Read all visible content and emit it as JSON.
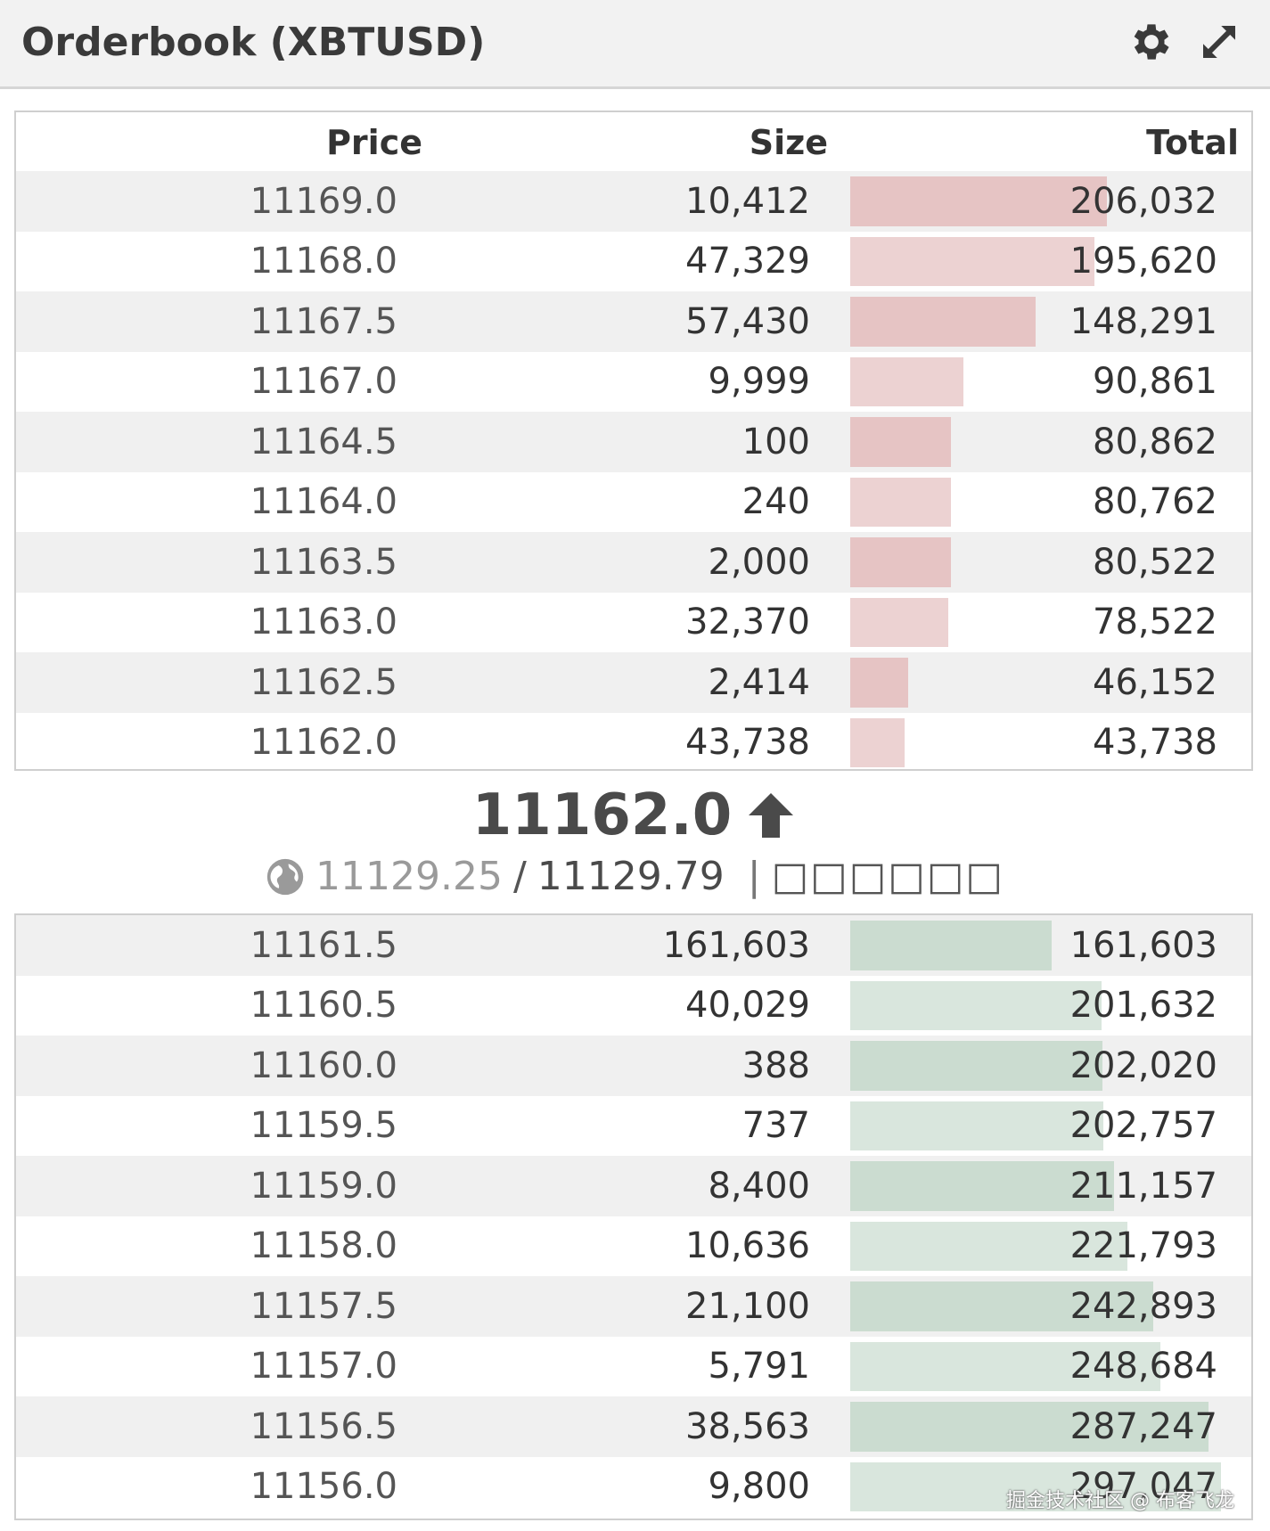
{
  "header": {
    "title": "Orderbook (XBTUSD)",
    "icons": [
      "gear-icon",
      "expand-icon"
    ]
  },
  "columns": {
    "price": "Price",
    "size": "Size",
    "total": "Total"
  },
  "asks": [
    {
      "price": "11169.0",
      "size": "10,412",
      "total": "206,032",
      "depth": 206032
    },
    {
      "price": "11168.0",
      "size": "47,329",
      "total": "195,620",
      "depth": 195620
    },
    {
      "price": "11167.5",
      "size": "57,430",
      "total": "148,291",
      "depth": 148291
    },
    {
      "price": "11167.0",
      "size": "9,999",
      "total": "90,861",
      "depth": 90861
    },
    {
      "price": "11164.5",
      "size": "100",
      "total": "80,862",
      "depth": 80862
    },
    {
      "price": "11164.0",
      "size": "240",
      "total": "80,762",
      "depth": 80762
    },
    {
      "price": "11163.5",
      "size": "2,000",
      "total": "80,522",
      "depth": 80522
    },
    {
      "price": "11163.0",
      "size": "32,370",
      "total": "78,522",
      "depth": 78522
    },
    {
      "price": "11162.5",
      "size": "2,414",
      "total": "46,152",
      "depth": 46152
    },
    {
      "price": "11162.0",
      "size": "43,738",
      "total": "43,738",
      "depth": 43738
    }
  ],
  "mid": {
    "last_price": "11162.0",
    "direction_icon": "arrow-up-icon",
    "index_icon": "globe-icon",
    "index_price": "11129.25",
    "separator": "/",
    "mark_price": "11129.79",
    "divider": "|",
    "label": "□□□□□□"
  },
  "bids": [
    {
      "price": "11161.5",
      "size": "161,603",
      "total": "161,603",
      "depth": 161603
    },
    {
      "price": "11160.5",
      "size": "40,029",
      "total": "201,632",
      "depth": 201632
    },
    {
      "price": "11160.0",
      "size": "388",
      "total": "202,020",
      "depth": 202020
    },
    {
      "price": "11159.5",
      "size": "737",
      "total": "202,757",
      "depth": 202757
    },
    {
      "price": "11159.0",
      "size": "8,400",
      "total": "211,157",
      "depth": 211157
    },
    {
      "price": "11158.0",
      "size": "10,636",
      "total": "221,793",
      "depth": 221793
    },
    {
      "price": "11157.5",
      "size": "21,100",
      "total": "242,893",
      "depth": 242893
    },
    {
      "price": "11157.0",
      "size": "5,791",
      "total": "248,684",
      "depth": 248684
    },
    {
      "price": "11156.5",
      "size": "38,563",
      "total": "287,247",
      "depth": 287247
    },
    {
      "price": "11156.0",
      "size": "9,800",
      "total": "297,047",
      "depth": 297047
    }
  ],
  "watermark": "掘金技术社区 @ 布客飞龙",
  "colors": {
    "ask_bar": "#ecd2d2",
    "bid_bar": "#d9e6dd",
    "header_bg": "#f2f2f2"
  }
}
